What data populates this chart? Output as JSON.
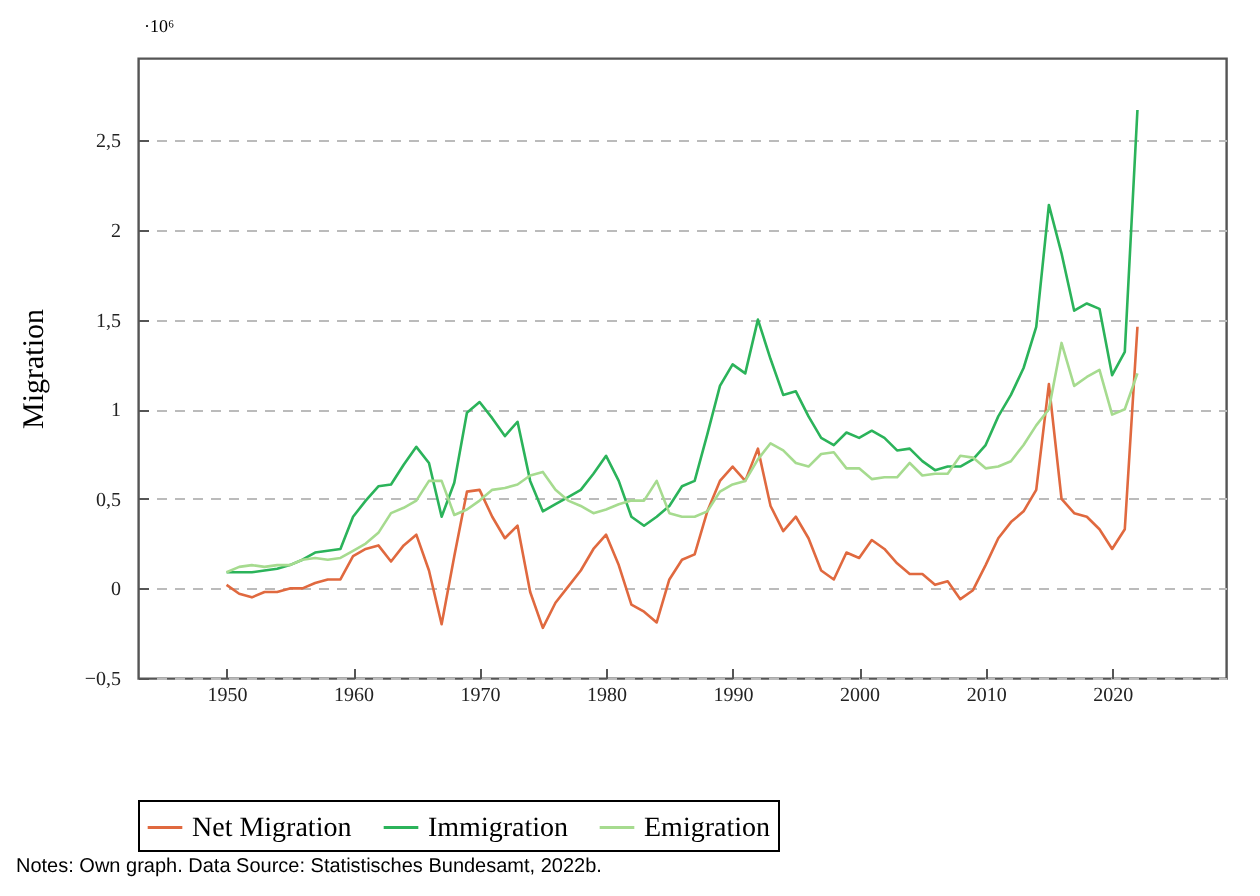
{
  "chart_data": {
    "type": "line",
    "ylabel": "Migration",
    "annotations": [
      "·10⁶",
      "Notes: Own graph. Data Source: Statistisches Bundesamt, 2022b."
    ],
    "x": [
      1950,
      1951,
      1952,
      1953,
      1954,
      1955,
      1956,
      1957,
      1958,
      1959,
      1960,
      1961,
      1962,
      1963,
      1964,
      1965,
      1966,
      1967,
      1968,
      1969,
      1970,
      1971,
      1972,
      1973,
      1974,
      1975,
      1976,
      1977,
      1978,
      1979,
      1980,
      1981,
      1982,
      1983,
      1984,
      1985,
      1986,
      1987,
      1988,
      1989,
      1990,
      1991,
      1992,
      1993,
      1994,
      1995,
      1996,
      1997,
      1998,
      1999,
      2000,
      2001,
      2002,
      2003,
      2004,
      2005,
      2006,
      2007,
      2008,
      2009,
      2010,
      2011,
      2012,
      2013,
      2014,
      2015,
      2016,
      2017,
      2018,
      2019,
      2020,
      2021,
      2022
    ],
    "series": [
      {
        "name": "Net Migration",
        "color": "#e0693f",
        "values": [
          0.02,
          -0.03,
          -0.05,
          -0.02,
          -0.02,
          0.0,
          0.0,
          0.03,
          0.05,
          0.05,
          0.18,
          0.22,
          0.24,
          0.15,
          0.24,
          0.3,
          0.1,
          -0.2,
          0.18,
          0.54,
          0.55,
          0.4,
          0.28,
          0.35,
          -0.02,
          -0.22,
          -0.08,
          0.01,
          0.1,
          0.22,
          0.3,
          0.13,
          -0.09,
          -0.13,
          -0.19,
          0.05,
          0.16,
          0.19,
          0.43,
          0.6,
          0.68,
          0.6,
          0.78,
          0.46,
          0.32,
          0.4,
          0.28,
          0.1,
          0.05,
          0.2,
          0.17,
          0.27,
          0.22,
          0.14,
          0.08,
          0.08,
          0.02,
          0.04,
          -0.06,
          -0.01,
          0.13,
          0.28,
          0.37,
          0.43,
          0.55,
          1.14,
          0.5,
          0.42,
          0.4,
          0.33,
          0.22,
          0.33,
          1.46
        ]
      },
      {
        "name": "Immigration",
        "color": "#2bb35a",
        "values": [
          0.09,
          0.09,
          0.09,
          0.1,
          0.11,
          0.13,
          0.16,
          0.2,
          0.21,
          0.22,
          0.4,
          0.49,
          0.57,
          0.58,
          0.69,
          0.79,
          0.7,
          0.4,
          0.59,
          0.98,
          1.04,
          0.95,
          0.85,
          0.93,
          0.6,
          0.43,
          0.47,
          0.51,
          0.55,
          0.64,
          0.74,
          0.6,
          0.4,
          0.35,
          0.4,
          0.46,
          0.57,
          0.6,
          0.86,
          1.13,
          1.25,
          1.2,
          1.5,
          1.28,
          1.08,
          1.1,
          0.96,
          0.84,
          0.8,
          0.87,
          0.84,
          0.88,
          0.84,
          0.77,
          0.78,
          0.71,
          0.66,
          0.68,
          0.68,
          0.72,
          0.8,
          0.96,
          1.08,
          1.23,
          1.46,
          2.14,
          1.87,
          1.55,
          1.59,
          1.56,
          1.19,
          1.32,
          2.67
        ]
      },
      {
        "name": "Emigration",
        "color": "#a6db8f",
        "values": [
          0.09,
          0.12,
          0.13,
          0.12,
          0.13,
          0.13,
          0.16,
          0.17,
          0.16,
          0.17,
          0.21,
          0.25,
          0.31,
          0.42,
          0.45,
          0.49,
          0.6,
          0.6,
          0.41,
          0.44,
          0.49,
          0.55,
          0.56,
          0.58,
          0.63,
          0.65,
          0.55,
          0.49,
          0.46,
          0.42,
          0.44,
          0.47,
          0.49,
          0.49,
          0.6,
          0.42,
          0.4,
          0.4,
          0.43,
          0.54,
          0.58,
          0.6,
          0.72,
          0.81,
          0.77,
          0.7,
          0.68,
          0.75,
          0.76,
          0.67,
          0.67,
          0.61,
          0.62,
          0.62,
          0.7,
          0.63,
          0.64,
          0.64,
          0.74,
          0.73,
          0.67,
          0.68,
          0.71,
          0.8,
          0.91,
          1.0,
          1.37,
          1.13,
          1.18,
          1.22,
          0.97,
          1.0,
          1.2
        ]
      }
    ],
    "xlim": [
      1943,
      2029
    ],
    "xticks": [
      1950,
      1960,
      1970,
      1980,
      1990,
      2000,
      2010,
      2020
    ],
    "ylim": [
      -0.5,
      2.96
    ],
    "yticks": [
      {
        "value": -0.5,
        "label": "−0,5"
      },
      0,
      {
        "value": 0.5,
        "label": "0,5"
      },
      1,
      {
        "value": 1.5,
        "label": "1,5"
      },
      2,
      {
        "value": 2.5,
        "label": "2,5"
      }
    ],
    "grid": "y",
    "legend": "bottom",
    "line_style": "solid",
    "marker": "none"
  }
}
